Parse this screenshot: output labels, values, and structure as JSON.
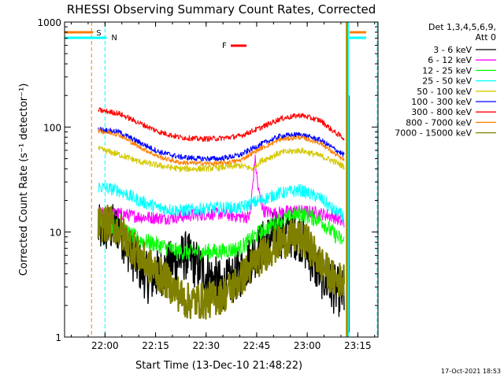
{
  "chart_data": {
    "type": "line",
    "title": "RHESSI Observing Summary Count Rates, Corrected",
    "xlabel": "Start Time (13-Dec-10 21:48:22)",
    "ylabel": "Corrected Count Rate (s⁻¹ detector⁻¹)",
    "yscale": "log",
    "ylim": [
      1,
      1000
    ],
    "xlim_minutes_after_21_48": [
      0,
      93
    ],
    "xticks": [
      {
        "minute": 12,
        "label": "22:00"
      },
      {
        "minute": 27,
        "label": "22:15"
      },
      {
        "minute": 42,
        "label": "22:30"
      },
      {
        "minute": 57,
        "label": "22:45"
      },
      {
        "minute": 72,
        "label": "23:00"
      },
      {
        "minute": 87,
        "label": "23:15"
      }
    ],
    "yticks": [
      {
        "value": 1,
        "label": "1"
      },
      {
        "value": 10,
        "label": "10"
      },
      {
        "value": 100,
        "label": "100"
      },
      {
        "value": 1000,
        "label": "1000"
      }
    ],
    "legend_header": [
      "Det 1,3,4,5,6,9,",
      "Att 0"
    ],
    "legend_placement": "right",
    "footer": "17-Oct-2021 18:53",
    "markers": {
      "S": {
        "label": "S",
        "color": "#ff7f00",
        "line_minute": 8
      },
      "N": {
        "label": "N",
        "color": "#00ffff",
        "line_minute": 12
      },
      "F": {
        "label": "F",
        "color": "#ff0000"
      }
    },
    "vlines": [
      {
        "minute": 8,
        "color": "#ff7f00",
        "style": "dashed"
      },
      {
        "minute": 12,
        "color": "#00ffff",
        "style": "dashed"
      },
      {
        "minute": 83.6,
        "color": "#ff7f00",
        "style": "solid"
      },
      {
        "minute": 83.9,
        "color": "#00c000",
        "style": "solid"
      },
      {
        "minute": 84.2,
        "color": "#00ffff",
        "style": "solid"
      },
      {
        "minute": 93,
        "color": "#ff7f00",
        "style": "dashed"
      },
      {
        "minute": 93,
        "color": "#00ffff",
        "style": "dashed"
      }
    ],
    "series": [
      {
        "name": "3 - 6 keV",
        "color": "#000000",
        "x": [
          10,
          16,
          20,
          25,
          30,
          36,
          42,
          47,
          52,
          56,
          61,
          66,
          70,
          74,
          79,
          83
        ],
        "y": [
          10.5,
          11,
          6,
          3.5,
          4.5,
          6,
          4,
          3,
          4,
          6,
          9,
          10,
          9,
          5,
          3,
          2.5
        ]
      },
      {
        "name": "6 - 12 keV",
        "color": "#ff00ff",
        "x": [
          10,
          16,
          22,
          30,
          38,
          46,
          52,
          55,
          56.5,
          57.5,
          59,
          62,
          68,
          74,
          80,
          83
        ],
        "y": [
          15,
          15,
          14,
          13.5,
          14.5,
          15,
          14,
          14,
          50,
          25,
          16,
          15,
          16,
          15.5,
          14,
          12
        ]
      },
      {
        "name": "12 - 25 keV",
        "color": "#00ff00",
        "x": [
          10,
          16,
          22,
          28,
          34,
          40,
          46,
          52,
          58,
          64,
          70,
          76,
          80,
          83
        ],
        "y": [
          13,
          11,
          8.5,
          7.5,
          6.5,
          6.5,
          6.5,
          7,
          10,
          13,
          15,
          13,
          9.5,
          8
        ]
      },
      {
        "name": "25 - 50 keV",
        "color": "#00ffff",
        "x": [
          10,
          16,
          22,
          28,
          34,
          40,
          46,
          52,
          58,
          64,
          70,
          76,
          80,
          83
        ],
        "y": [
          27,
          25,
          20,
          17,
          16,
          16.5,
          17,
          17,
          20,
          23.5,
          25,
          21,
          16,
          14
        ]
      },
      {
        "name": "50 - 100 keV",
        "color": "#d4c800",
        "x": [
          10,
          16,
          22,
          28,
          34,
          40,
          46,
          52,
          56,
          58,
          64,
          70,
          76,
          80,
          83
        ],
        "y": [
          62,
          55,
          47,
          43,
          40,
          40,
          41,
          43,
          40,
          47,
          57,
          60,
          53,
          47,
          42
        ]
      },
      {
        "name": "100 - 300 keV",
        "color": "#0000ff",
        "x": [
          10,
          16,
          22,
          28,
          34,
          40,
          46,
          52,
          58,
          64,
          70,
          76,
          80,
          83
        ],
        "y": [
          95,
          90,
          72,
          58,
          52,
          50,
          50,
          54,
          68,
          82,
          85,
          75,
          62,
          54
        ]
      },
      {
        "name": "300 - 800 keV",
        "color": "#ff0000",
        "x": [
          10,
          16,
          22,
          28,
          34,
          40,
          46,
          52,
          58,
          64,
          70,
          76,
          80,
          83
        ],
        "y": [
          145,
          135,
          110,
          90,
          80,
          77,
          78,
          82,
          98,
          120,
          130,
          115,
          90,
          78
        ]
      },
      {
        "name": "800 - 7000 keV",
        "color": "#ff7f00",
        "x": [
          10,
          16,
          22,
          28,
          34,
          40,
          46,
          52,
          58,
          64,
          70,
          76,
          80,
          83
        ],
        "y": [
          92,
          85,
          65,
          52,
          46,
          45,
          45,
          48,
          62,
          76,
          80,
          70,
          56,
          48
        ]
      },
      {
        "name": "7000 - 15000 keV",
        "color": "#808000",
        "x": [
          10,
          14,
          18,
          22,
          26,
          30,
          36,
          42,
          47,
          52,
          56,
          60,
          64,
          68,
          72,
          76,
          80,
          83
        ],
        "y": [
          12,
          12,
          9,
          6,
          4.5,
          3.5,
          2.2,
          2.2,
          2.5,
          3.5,
          5,
          6.5,
          8,
          9,
          8,
          5,
          3.5,
          3.5
        ]
      }
    ]
  }
}
